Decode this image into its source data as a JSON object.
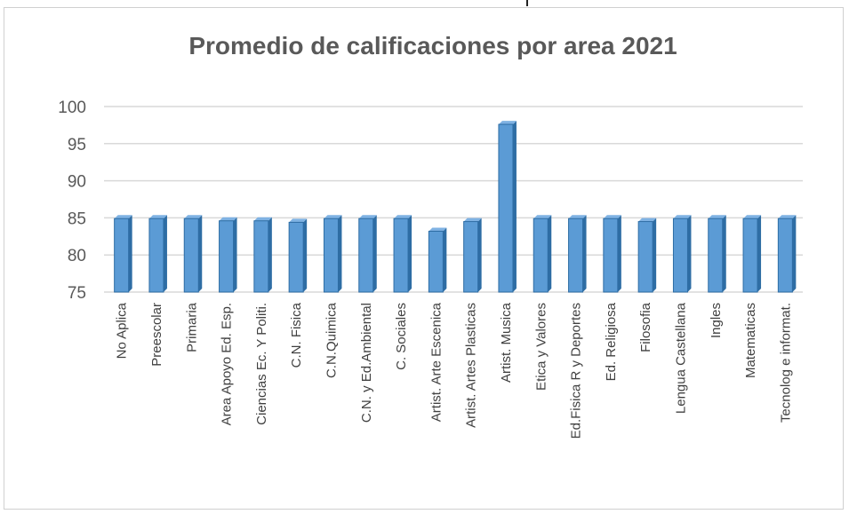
{
  "chart_data": {
    "type": "bar",
    "title": "Promedio de calificaciones por area 2021",
    "xlabel": "",
    "ylabel": "",
    "ylim": [
      75,
      100
    ],
    "yticks": [
      75,
      80,
      85,
      90,
      95,
      100
    ],
    "grid": true,
    "legend": "none",
    "bar_color": "#5B9BD5",
    "bar_edge_color": "#2E6DA4",
    "categories": [
      "No Aplica",
      "Preescolar",
      "Primaria",
      "Area Apoyo Ed. Esp.",
      "Ciencias Ec. Y Politi.",
      "C.N. Fisica",
      "C.N.Quimica",
      "C.N. y Ed.Ambiental",
      "C. Sociales",
      "Artist. Arte Escenica",
      "Artist. Artes Plasticas",
      "Artist. Musica",
      "Etica y Valores",
      "Ed.Fisica R y Deportes",
      "Ed. Religiosa",
      "Filosofia",
      "Lengua Castellana",
      "Ingles",
      "Matematicas",
      "Tecnolog e informat."
    ],
    "values": [
      84.9,
      84.9,
      84.9,
      84.6,
      84.6,
      84.4,
      84.9,
      84.9,
      84.9,
      83.2,
      84.5,
      97.6,
      84.9,
      84.9,
      84.9,
      84.5,
      84.9,
      84.9,
      84.9,
      84.9
    ]
  }
}
